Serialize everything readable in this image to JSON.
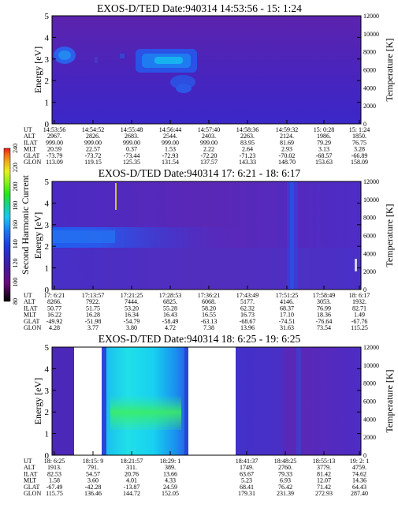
{
  "figure": {
    "colorbar": {
      "title": "Second Harmonic Current",
      "ticks": [
        "80",
        "100",
        "120",
        "140",
        "160",
        "180",
        "200",
        "220",
        "240"
      ],
      "colors": [
        "#000000",
        "#6a0a7a",
        "#3d1fa0",
        "#1f3ad8",
        "#1a78f0",
        "#19c8f0",
        "#16d28c",
        "#22e61e",
        "#8ef01a",
        "#e8f01a",
        "#f0b01a",
        "#f06a1a",
        "#e81a1a"
      ]
    },
    "common": {
      "ylabel": "Energy [eV]",
      "y2label": "Temperature [K]",
      "yticks": [
        "0",
        "1",
        "2",
        "3",
        "4",
        "5"
      ],
      "y2ticks": [
        "0",
        "2000",
        "4000",
        "6000",
        "8000",
        "10000",
        "12000"
      ],
      "orbit_labels": [
        "UT",
        "ALT",
        "ILAT",
        "MLT",
        "GLAT",
        "GLON"
      ]
    }
  },
  "chart_data": [
    {
      "type": "heatmap",
      "title": "EXOS-D/TED    Date:940314   14:53:56 - 15: 1:24",
      "ylabel": "Energy [eV]",
      "y2label": "Temperature [K]",
      "ylim": [
        0,
        5
      ],
      "y2lim": [
        0,
        12000
      ],
      "orbit": [
        [
          "14:53:56",
          "2967.",
          "999.00",
          "20.59",
          "-73.79",
          "113.09"
        ],
        [
          "14:54:52",
          "2826.",
          "999.00",
          "22.57",
          "-73.72",
          "119.15"
        ],
        [
          "14:55:48",
          "2683.",
          "999.00",
          "0.37",
          "-73.44",
          "125.35"
        ],
        [
          "14:56:44",
          "2544.",
          "999.00",
          "1.53",
          "-72.93",
          "131.54"
        ],
        [
          "14:57:40",
          "2403.",
          "999.00",
          "2.22",
          "-72.20",
          "137.57"
        ],
        [
          "14:58:36",
          "2263.",
          "83.95",
          "2.64",
          "-71.23",
          "143.33"
        ],
        [
          "14:59:32",
          "2124.",
          "81.69",
          "2.93",
          "-70.02",
          "148.70"
        ],
        [
          "15: 0:28",
          "1986.",
          "79.29",
          "3.13",
          "-68.57",
          "153.63"
        ],
        [
          "15: 1:24",
          "1850.",
          "76.75",
          "3.28",
          "-66.89",
          "158.09"
        ]
      ]
    },
    {
      "type": "heatmap",
      "title": "EXOS-D/TED    Date:940314   17: 6:21 - 18: 6:17",
      "ylabel": "Energy [eV]",
      "y2label": "Temperature [K]",
      "ylim": [
        0,
        5
      ],
      "y2lim": [
        0,
        12000
      ],
      "orbit": [
        [
          "17: 6:21",
          "8266.",
          "50.77",
          "16.22",
          "-49.92",
          "4.28"
        ],
        [
          "17:13:57",
          "7922.",
          "51.75",
          "16.28",
          "-51.98",
          "3.77"
        ],
        [
          "17:21:25",
          "7444.",
          "53.20",
          "16.34",
          "-54.79",
          "3.80"
        ],
        [
          "17:28:53",
          "6825.",
          "55.28",
          "16.43",
          "-58.49",
          "4.72"
        ],
        [
          "17:36:21",
          "6068.",
          "58.20",
          "16.55",
          "-63.13",
          "7.38"
        ],
        [
          "17:43:49",
          "5177.",
          "62.32",
          "16.73",
          "-68.67",
          "13.96"
        ],
        [
          "17:51:25",
          "4146.",
          "68.37",
          "17.10",
          "-74.51",
          "31.63"
        ],
        [
          "17:58:49",
          "3053.",
          "76.99",
          "18.36",
          "-76.64",
          "73.54"
        ],
        [
          "18: 6:17",
          "1932.",
          "82.71",
          "1.49",
          "-67.76",
          "115.25"
        ]
      ]
    },
    {
      "type": "heatmap",
      "title": "EXOS-D/TED    Date:940314   18: 6:25 - 19: 6:25",
      "ylabel": "Energy [eV]",
      "y2label": "Temperature [K]",
      "ylim": [
        0,
        5
      ],
      "y2lim": [
        0,
        12000
      ],
      "orbit": [
        [
          "18: 6:25",
          "1913.",
          "82.53",
          "1.58",
          "-67.49",
          "115.75"
        ],
        [
          "18:15: 9",
          "791.",
          "54.57",
          "3.60",
          "-42.28",
          "136.46"
        ],
        [
          "18:21:57",
          "311.",
          "20.76",
          "4.01",
          "-13.87",
          "144.72"
        ],
        [
          "18:29: 1",
          "389.",
          "13.66",
          "4.33",
          "24.59",
          "152.05"
        ],
        [
          "18:41:37",
          "1749.",
          "63.67",
          "5.23",
          "68.41",
          "179.31"
        ],
        [
          "18:48:25",
          "2760.",
          "79.33",
          "6.93",
          "76.42",
          "231.39"
        ],
        [
          "18:55:13",
          "3779.",
          "81.42",
          "12.07",
          "71.42",
          "272.93"
        ],
        [
          "19: 2: 1",
          "4759.",
          "74.62",
          "14.36",
          "64.43",
          "287.40"
        ]
      ]
    }
  ]
}
